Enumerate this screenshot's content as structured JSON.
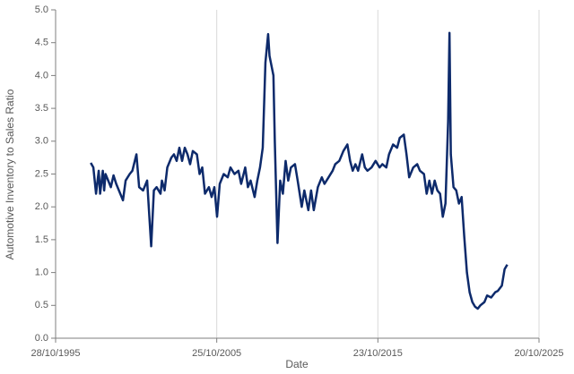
{
  "chart_data": {
    "type": "line",
    "x_label": "Date",
    "y_label": "Automotive Inventory to Sales Ratio",
    "x": [
      "1998-01-01",
      "1998-03-01",
      "1998-05-01",
      "1998-07-01",
      "1998-08-01",
      "1998-10-01",
      "1998-11-01",
      "1998-12-01",
      "1999-02-01",
      "1999-04-01",
      "1999-06-01",
      "1999-08-01",
      "2000-01-01",
      "2000-03-01",
      "2000-06-01",
      "2000-08-01",
      "2000-11-01",
      "2001-01-01",
      "2001-04-01",
      "2001-07-01",
      "2001-10-01",
      "2001-12-01",
      "2002-02-01",
      "2002-05-01",
      "2002-06-01",
      "2002-08-01",
      "2002-10-01",
      "2003-01-01",
      "2003-03-01",
      "2003-05-01",
      "2003-07-01",
      "2003-09-01",
      "2003-11-01",
      "2004-01-01",
      "2004-03-01",
      "2004-05-01",
      "2004-08-01",
      "2004-10-01",
      "2004-12-01",
      "2005-02-01",
      "2005-05-01",
      "2005-07-01",
      "2005-09-01",
      "2005-11-01",
      "2006-01-01",
      "2006-04-01",
      "2006-07-01",
      "2006-09-01",
      "2006-12-01",
      "2007-03-01",
      "2007-05-01",
      "2007-08-01",
      "2007-10-01",
      "2007-12-01",
      "2008-03-01",
      "2008-05-01",
      "2008-07-01",
      "2008-09-01",
      "2008-11-01",
      "2009-01-01",
      "2009-02-01",
      "2009-05-01",
      "2009-06-01",
      "2009-08-01",
      "2009-10-01",
      "2009-12-01",
      "2010-02-01",
      "2010-04-01",
      "2010-06-01",
      "2010-09-01",
      "2010-11-01",
      "2011-02-01",
      "2011-04-01",
      "2011-07-01",
      "2011-09-01",
      "2011-11-01",
      "2012-02-01",
      "2012-05-01",
      "2012-07-01",
      "2012-10-01",
      "2013-01-01",
      "2013-03-01",
      "2013-06-01",
      "2013-09-01",
      "2013-12-01",
      "2014-02-01",
      "2014-04-01",
      "2014-06-01",
      "2014-08-01",
      "2014-11-01",
      "2015-01-01",
      "2015-03-01",
      "2015-06-01",
      "2015-09-01",
      "2015-12-01",
      "2016-02-01",
      "2016-05-01",
      "2016-07-01",
      "2016-10-01",
      "2017-01-01",
      "2017-03-01",
      "2017-06-01",
      "2017-08-01",
      "2017-10-01",
      "2018-01-01",
      "2018-04-01",
      "2018-06-01",
      "2018-09-01",
      "2018-11-01",
      "2019-01-01",
      "2019-03-01",
      "2019-05-01",
      "2019-07-01",
      "2019-09-01",
      "2019-11-01",
      "2020-01-01",
      "2020-03-01",
      "2020-04-01",
      "2020-05-01",
      "2020-07-01",
      "2020-09-01",
      "2020-11-01",
      "2021-01-01",
      "2021-03-01",
      "2021-05-01",
      "2021-07-01",
      "2021-09-01",
      "2021-11-01",
      "2022-01-01",
      "2022-03-01",
      "2022-06-01",
      "2022-08-01",
      "2022-11-01",
      "2023-02-01",
      "2023-04-01",
      "2023-07-01",
      "2023-09-01",
      "2023-11-01"
    ],
    "series": [
      {
        "color": "#0d2a6b",
        "values": [
          2.67,
          2.6,
          2.2,
          2.55,
          2.2,
          2.55,
          2.25,
          2.5,
          2.4,
          2.3,
          2.48,
          2.35,
          2.1,
          2.4,
          2.5,
          2.55,
          2.8,
          2.3,
          2.25,
          2.4,
          1.4,
          2.25,
          2.3,
          2.2,
          2.4,
          2.25,
          2.6,
          2.75,
          2.8,
          2.7,
          2.9,
          2.7,
          2.9,
          2.8,
          2.65,
          2.85,
          2.8,
          2.5,
          2.6,
          2.2,
          2.3,
          2.15,
          2.3,
          1.85,
          2.35,
          2.5,
          2.45,
          2.6,
          2.5,
          2.55,
          2.35,
          2.6,
          2.3,
          2.4,
          2.15,
          2.4,
          2.6,
          2.9,
          4.2,
          4.63,
          4.3,
          4.0,
          3.0,
          1.45,
          2.4,
          2.2,
          2.7,
          2.4,
          2.6,
          2.65,
          2.4,
          2.0,
          2.25,
          1.95,
          2.25,
          1.95,
          2.3,
          2.45,
          2.35,
          2.45,
          2.55,
          2.65,
          2.7,
          2.85,
          2.95,
          2.7,
          2.55,
          2.65,
          2.55,
          2.8,
          2.6,
          2.55,
          2.6,
          2.7,
          2.6,
          2.65,
          2.6,
          2.8,
          2.95,
          2.9,
          3.05,
          3.1,
          2.8,
          2.45,
          2.6,
          2.65,
          2.55,
          2.5,
          2.2,
          2.4,
          2.2,
          2.4,
          2.25,
          2.2,
          1.85,
          2.05,
          3.3,
          4.65,
          2.8,
          2.3,
          2.25,
          2.05,
          2.15,
          1.55,
          1.0,
          0.7,
          0.55,
          0.48,
          0.45,
          0.5,
          0.55,
          0.65,
          0.62,
          0.7,
          0.72,
          0.8,
          1.05,
          1.12
        ]
      }
    ],
    "xlim": [
      "1995-10-28",
      "2025-10-20"
    ],
    "xticks": [
      {
        "value": "1995-10-28",
        "label": "28/10/1995"
      },
      {
        "value": "2005-10-25",
        "label": "25/10/2005"
      },
      {
        "value": "2015-10-23",
        "label": "23/10/2015"
      },
      {
        "value": "2025-10-20",
        "label": "20/10/2025"
      }
    ],
    "ylim": [
      0,
      5
    ],
    "yticks": [
      {
        "value": 0,
        "label": "0.0"
      },
      {
        "value": 0.5,
        "label": "0.5"
      },
      {
        "value": 1,
        "label": "1.0"
      },
      {
        "value": 1.5,
        "label": "1.5"
      },
      {
        "value": 2,
        "label": "2.0"
      },
      {
        "value": 2.5,
        "label": "2.5"
      },
      {
        "value": 3,
        "label": "3.0"
      },
      {
        "value": 3.5,
        "label": "3.5"
      },
      {
        "value": 4,
        "label": "4.0"
      },
      {
        "value": 4.5,
        "label": "4.5"
      },
      {
        "value": 5,
        "label": "5.0"
      }
    ],
    "grid": "x"
  }
}
